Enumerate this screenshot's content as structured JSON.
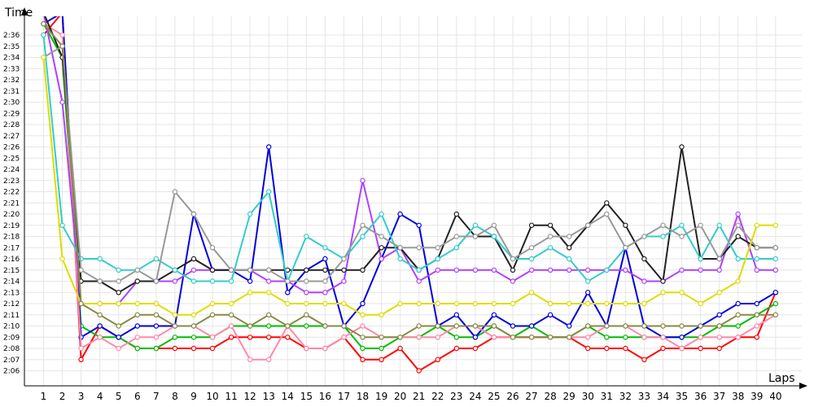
{
  "chart_data": {
    "type": "line",
    "title": "",
    "xlabel": "Laps",
    "ylabel": "Time",
    "xlim": [
      0,
      40
    ],
    "ylim": [
      2.05,
      2.37
    ],
    "grid": true,
    "legend": "none",
    "x_ticks": [
      "1",
      "2",
      "3",
      "4",
      "5",
      "6",
      "7",
      "8",
      "9",
      "10",
      "11",
      "12",
      "13",
      "14",
      "15",
      "16",
      "17",
      "18",
      "19",
      "20",
      "21",
      "22",
      "23",
      "24",
      "25",
      "26",
      "27",
      "28",
      "29",
      "30",
      "31",
      "32",
      "33",
      "34",
      "35",
      "36",
      "37",
      "38",
      "39",
      "40"
    ],
    "y_ticks": [
      "2:06",
      "2:07",
      "2:08",
      "2:09",
      "2:10",
      "2:11",
      "2:12",
      "2:13",
      "2:14",
      "2:15",
      "2:16",
      "2:17",
      "2:18",
      "2:19",
      "2:20",
      "2:21",
      "2:22",
      "2:23",
      "2:24",
      "2:25",
      "2:26",
      "2:27",
      "2:28",
      "2:29",
      "2:30",
      "2:31",
      "2:32",
      "2:33",
      "2:34",
      "2:35",
      "2:36"
    ],
    "series": [
      {
        "color": "#ff0000",
        "values": [
          2.36,
          2.38,
          2.07,
          2.1,
          2.09,
          2.08,
          2.08,
          2.08,
          2.08,
          2.08,
          2.09,
          2.09,
          2.09,
          2.09,
          2.08,
          2.08,
          2.09,
          2.07,
          2.07,
          2.08,
          2.06,
          2.07,
          2.08,
          2.08,
          2.09,
          2.09,
          2.09,
          2.09,
          2.09,
          2.08,
          2.08,
          2.08,
          2.07,
          2.08,
          2.08,
          2.08,
          2.08,
          2.09,
          2.09,
          2.13
        ]
      },
      {
        "color": "#00bb00",
        "values": [
          2.37,
          2.34,
          2.1,
          2.09,
          2.09,
          2.08,
          2.08,
          2.09,
          2.09,
          2.09,
          2.1,
          2.1,
          2.1,
          2.1,
          2.1,
          2.1,
          2.1,
          2.08,
          2.08,
          2.09,
          2.09,
          2.1,
          2.09,
          2.09,
          2.1,
          2.09,
          2.1,
          2.09,
          2.09,
          2.1,
          2.09,
          2.09,
          2.09,
          2.09,
          2.09,
          2.09,
          2.1,
          2.1,
          2.11,
          2.12
        ]
      },
      {
        "color": "#0000dd",
        "values": [
          2.37,
          2.38,
          2.09,
          2.1,
          2.09,
          2.1,
          2.1,
          2.1,
          2.2,
          2.15,
          2.15,
          2.14,
          2.26,
          2.13,
          2.15,
          2.16,
          2.1,
          2.12,
          2.16,
          2.2,
          2.19,
          2.1,
          2.11,
          2.09,
          2.11,
          2.1,
          2.1,
          2.11,
          2.1,
          2.13,
          2.1,
          2.17,
          2.1,
          2.09,
          2.09,
          2.1,
          2.11,
          2.12,
          2.12,
          2.13
        ]
      },
      {
        "color": "#ff88aa",
        "values": [
          2.37,
          2.36,
          2.08,
          2.09,
          2.08,
          2.09,
          2.09,
          2.1,
          2.1,
          2.09,
          2.1,
          2.07,
          2.07,
          2.1,
          2.08,
          2.08,
          2.09,
          2.1,
          2.09,
          2.09,
          2.09,
          2.09,
          2.1,
          2.1,
          2.09,
          2.09,
          2.09,
          2.09,
          2.09,
          2.09,
          2.1,
          2.1,
          2.09,
          2.09,
          2.08,
          2.09,
          2.09,
          2.09,
          2.1,
          2.11
        ]
      },
      {
        "color": "#b040ff",
        "values": [
          2.38,
          2.3,
          2.12,
          2.12,
          2.12,
          2.14,
          2.14,
          2.14,
          2.15,
          2.15,
          2.15,
          2.15,
          2.14,
          2.14,
          2.13,
          2.13,
          2.14,
          2.23,
          2.16,
          2.17,
          2.14,
          2.15,
          2.15,
          2.15,
          2.15,
          2.14,
          2.15,
          2.15,
          2.15,
          2.15,
          2.15,
          2.15,
          2.14,
          2.14,
          2.15,
          2.15,
          2.15,
          2.2,
          2.15,
          2.15
        ]
      },
      {
        "color": "#222222",
        "values": [
          2.38,
          2.34,
          2.14,
          2.14,
          2.13,
          2.14,
          2.14,
          2.15,
          2.16,
          2.15,
          2.15,
          2.15,
          2.15,
          2.15,
          2.15,
          2.15,
          2.15,
          2.15,
          2.17,
          2.17,
          2.15,
          2.16,
          2.2,
          2.18,
          2.18,
          2.15,
          2.19,
          2.19,
          2.17,
          2.19,
          2.21,
          2.19,
          2.16,
          2.14,
          2.26,
          2.16,
          2.16,
          2.18,
          2.17,
          2.17
        ]
      },
      {
        "color": "#33cccc",
        "values": [
          2.36,
          2.19,
          2.16,
          2.16,
          2.15,
          2.15,
          2.16,
          2.15,
          2.14,
          2.14,
          2.14,
          2.2,
          2.22,
          2.14,
          2.18,
          2.17,
          2.16,
          2.18,
          2.2,
          2.16,
          2.15,
          2.16,
          2.17,
          2.19,
          2.18,
          2.16,
          2.16,
          2.17,
          2.16,
          2.14,
          2.15,
          2.17,
          2.18,
          2.18,
          2.19,
          2.16,
          2.19,
          2.16,
          2.16,
          2.16
        ]
      },
      {
        "color": "#999999",
        "values": [
          2.34,
          2.35,
          2.15,
          2.14,
          2.14,
          2.15,
          2.14,
          2.22,
          2.2,
          2.17,
          2.15,
          2.15,
          2.15,
          2.14,
          2.14,
          2.14,
          2.16,
          2.19,
          2.18,
          2.17,
          2.17,
          2.17,
          2.18,
          2.18,
          2.19,
          2.16,
          2.17,
          2.18,
          2.18,
          2.19,
          2.2,
          2.17,
          2.18,
          2.19,
          2.18,
          2.19,
          2.16,
          2.19,
          2.17,
          2.17
        ]
      },
      {
        "color": "#dddd00",
        "values": [
          2.34,
          2.16,
          2.12,
          2.12,
          2.12,
          2.12,
          2.12,
          2.11,
          2.11,
          2.12,
          2.12,
          2.13,
          2.13,
          2.12,
          2.12,
          2.12,
          2.12,
          2.11,
          2.11,
          2.12,
          2.12,
          2.12,
          2.12,
          2.12,
          2.12,
          2.12,
          2.13,
          2.12,
          2.12,
          2.12,
          2.12,
          2.12,
          2.12,
          2.13,
          2.13,
          2.12,
          2.13,
          2.14,
          2.19,
          2.19
        ]
      },
      {
        "color": "#888844",
        "values": [
          2.37,
          2.35,
          2.12,
          2.11,
          2.1,
          2.11,
          2.11,
          2.1,
          2.1,
          2.11,
          2.11,
          2.1,
          2.11,
          2.1,
          2.11,
          2.1,
          2.1,
          2.09,
          2.09,
          2.09,
          2.1,
          2.1,
          2.1,
          2.1,
          2.1,
          2.09,
          2.09,
          2.09,
          2.09,
          2.1,
          2.1,
          2.1,
          2.1,
          2.1,
          2.1,
          2.1,
          2.1,
          2.11,
          2.11,
          2.11
        ]
      }
    ]
  }
}
